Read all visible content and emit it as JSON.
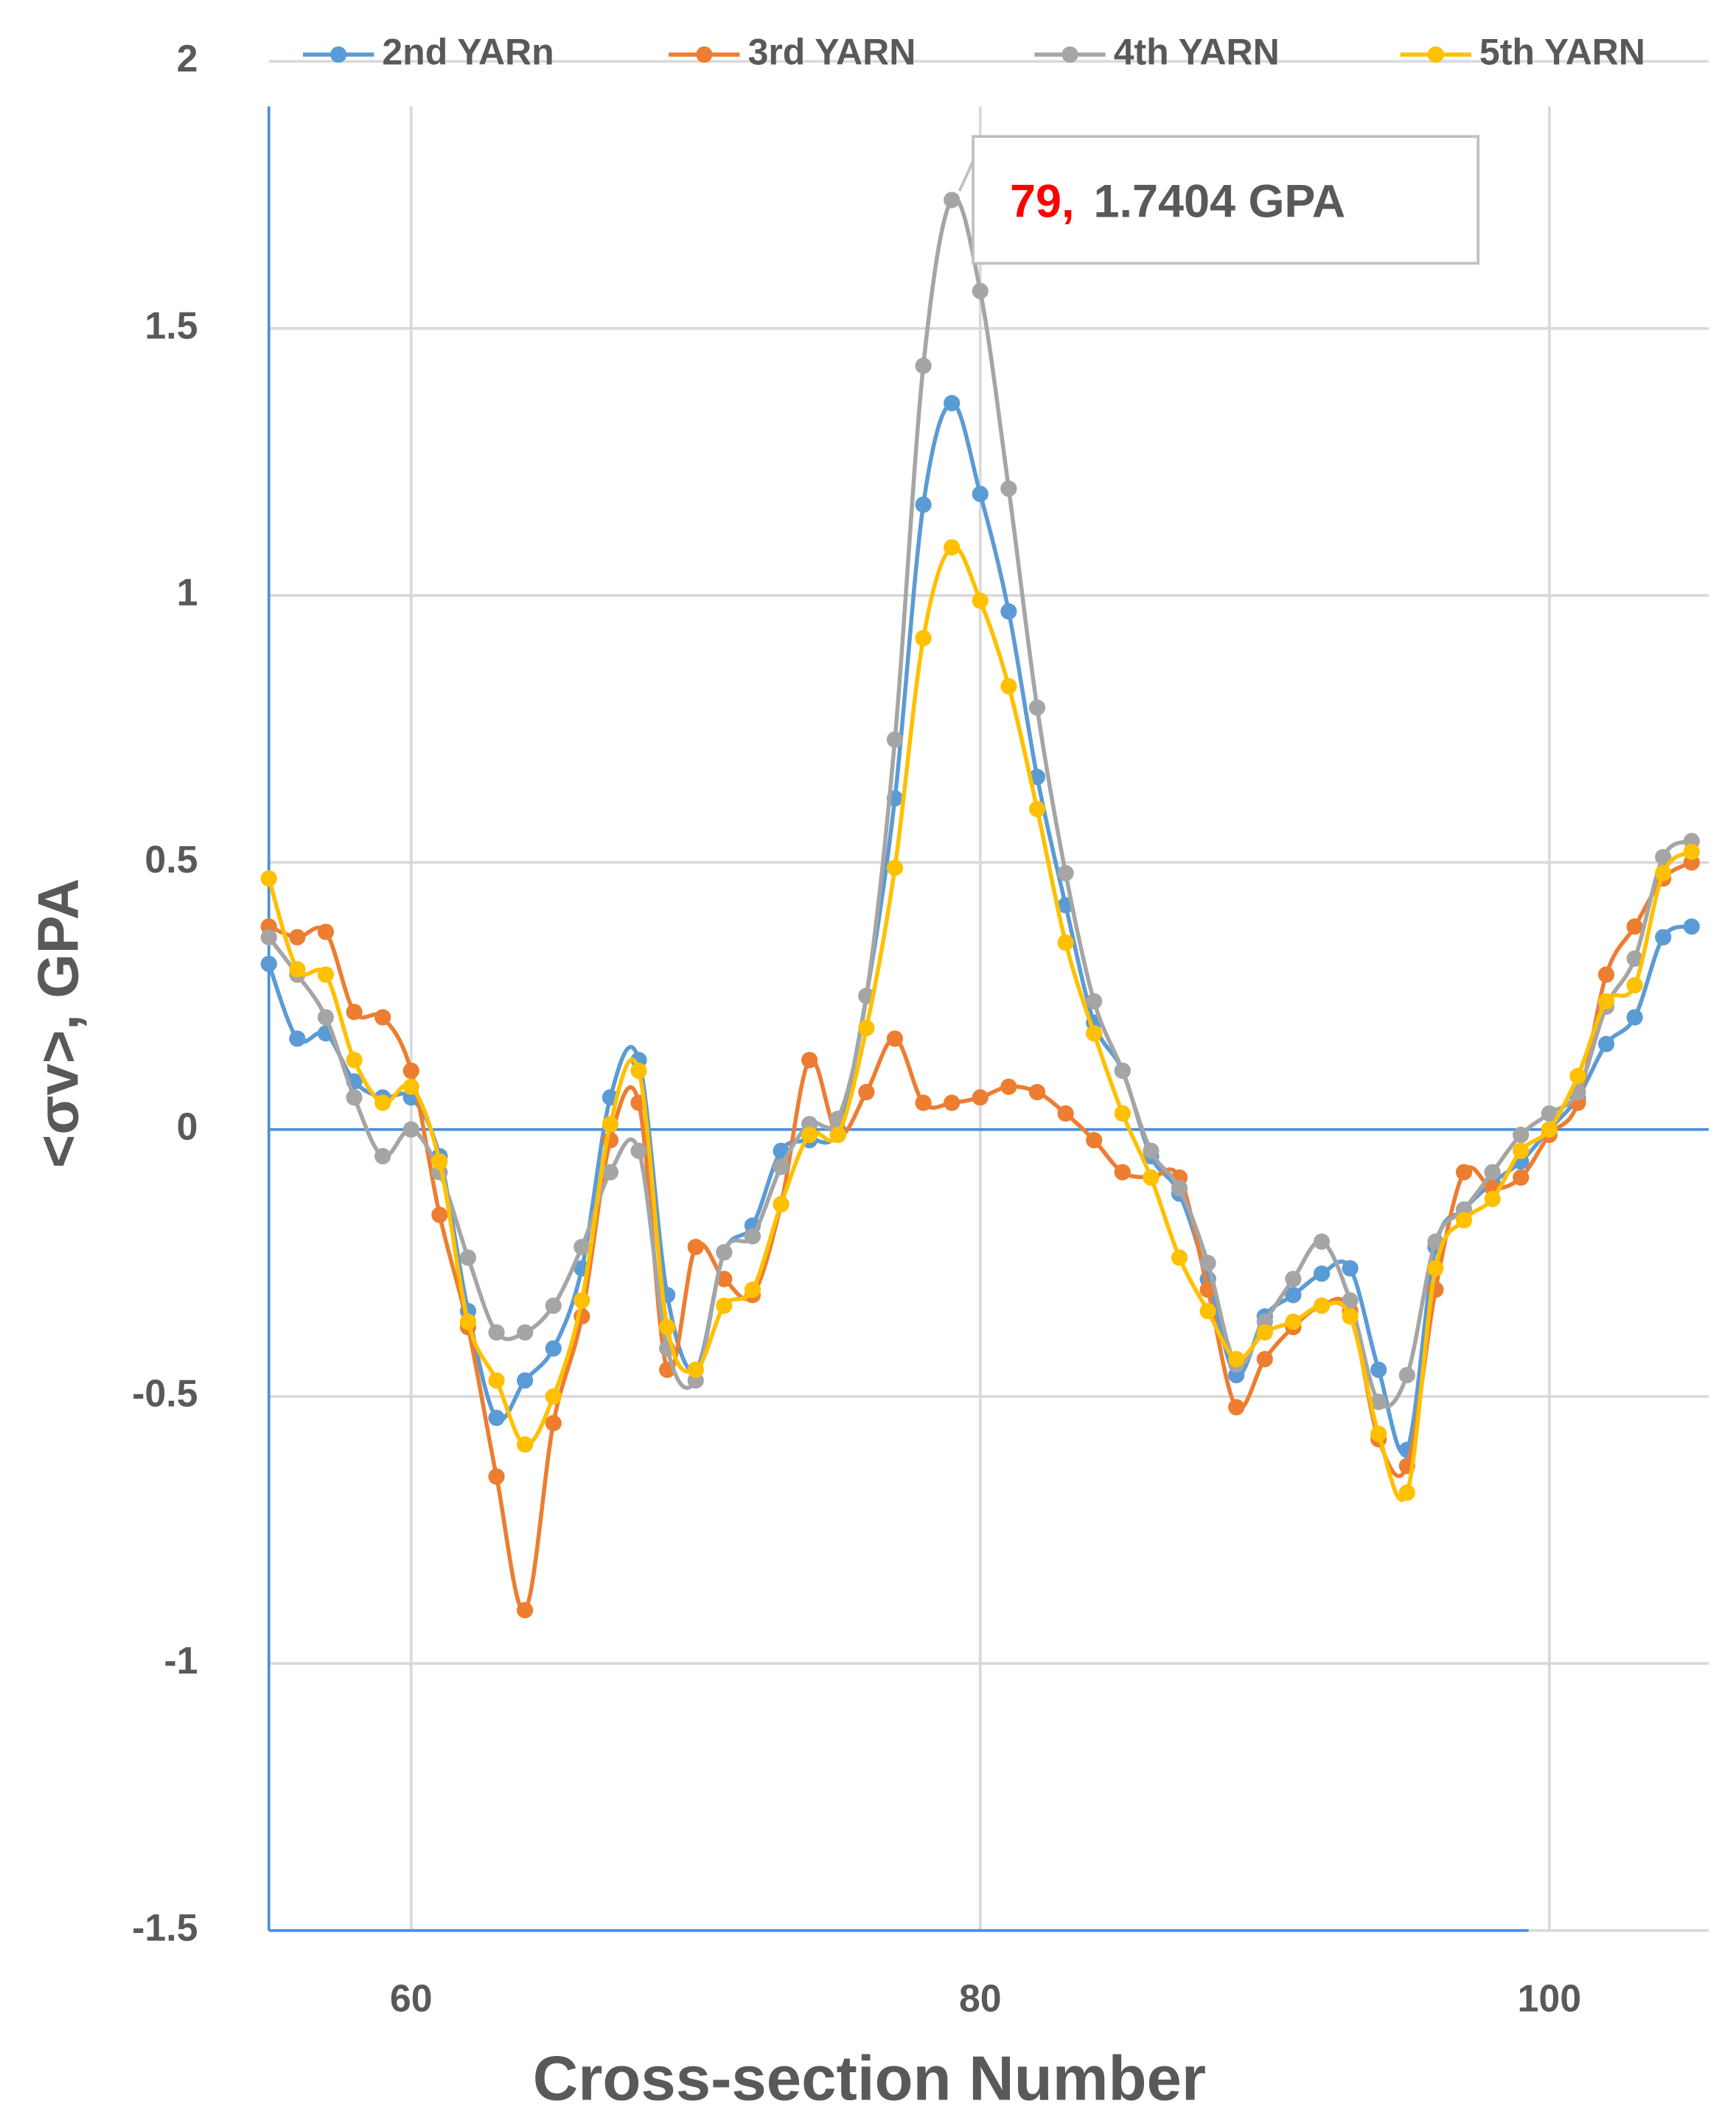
{
  "chart_data": {
    "type": "line",
    "xlabel": "Cross-section Number",
    "ylabel": "<σv>, GPA",
    "x": [
      55,
      56,
      57,
      58,
      59,
      60,
      61,
      62,
      63,
      64,
      65,
      66,
      67,
      68,
      69,
      70,
      71,
      72,
      73,
      74,
      75,
      76,
      77,
      78,
      79,
      80,
      81,
      82,
      83,
      84,
      85,
      86,
      87,
      88,
      89,
      90,
      91,
      92,
      93,
      94,
      95,
      96,
      97,
      98,
      99,
      100,
      101,
      102,
      103,
      104,
      105
    ],
    "series": [
      {
        "name": "2nd YARn",
        "color": "#5b9bd5",
        "values": [
          0.31,
          0.17,
          0.18,
          0.09,
          0.06,
          0.06,
          -0.05,
          -0.34,
          -0.54,
          -0.47,
          -0.41,
          -0.26,
          0.06,
          0.13,
          -0.31,
          -0.45,
          -0.23,
          -0.18,
          -0.04,
          -0.02,
          0.0,
          0.25,
          0.62,
          1.17,
          1.36,
          1.19,
          0.97,
          0.66,
          0.42,
          0.2,
          0.11,
          -0.05,
          -0.12,
          -0.28,
          -0.46,
          -0.35,
          -0.31,
          -0.27,
          -0.26,
          -0.45,
          -0.6,
          -0.22,
          -0.15,
          -0.1,
          -0.06,
          0.0,
          0.06,
          0.16,
          0.21,
          0.36,
          0.38
        ]
      },
      {
        "name": "3rd YARN",
        "color": "#ed7d31",
        "values": [
          0.38,
          0.36,
          0.37,
          0.22,
          0.21,
          0.11,
          -0.16,
          -0.37,
          -0.65,
          -0.9,
          -0.55,
          -0.35,
          -0.02,
          0.05,
          -0.45,
          -0.22,
          -0.28,
          -0.31,
          -0.14,
          0.13,
          -0.01,
          0.07,
          0.17,
          0.05,
          0.05,
          0.06,
          0.08,
          0.07,
          0.03,
          -0.02,
          -0.08,
          -0.09,
          -0.09,
          -0.3,
          -0.52,
          -0.43,
          -0.37,
          -0.33,
          -0.34,
          -0.58,
          -0.63,
          -0.3,
          -0.08,
          -0.11,
          -0.09,
          -0.01,
          0.05,
          0.29,
          0.38,
          0.47,
          0.5
        ]
      },
      {
        "name": "4th YARN",
        "color": "#a5a5a5",
        "values": [
          0.36,
          0.29,
          0.21,
          0.06,
          -0.05,
          0.0,
          -0.08,
          -0.24,
          -0.38,
          -0.38,
          -0.33,
          -0.22,
          -0.08,
          -0.04,
          -0.41,
          -0.47,
          -0.23,
          -0.2,
          -0.07,
          0.01,
          0.02,
          0.25,
          0.73,
          1.43,
          1.7404,
          1.57,
          1.2,
          0.79,
          0.48,
          0.24,
          0.11,
          -0.04,
          -0.11,
          -0.25,
          -0.44,
          -0.36,
          -0.28,
          -0.21,
          -0.32,
          -0.51,
          -0.46,
          -0.21,
          -0.15,
          -0.08,
          -0.01,
          0.03,
          0.07,
          0.23,
          0.32,
          0.51,
          0.54
        ]
      },
      {
        "name": "5th YARN",
        "color": "#ffc000",
        "values": [
          0.47,
          0.3,
          0.29,
          0.13,
          0.05,
          0.08,
          -0.06,
          -0.36,
          -0.47,
          -0.59,
          -0.5,
          -0.32,
          0.01,
          0.11,
          -0.37,
          -0.45,
          -0.33,
          -0.3,
          -0.14,
          -0.01,
          -0.01,
          0.19,
          0.49,
          0.92,
          1.09,
          0.99,
          0.83,
          0.6,
          0.35,
          0.18,
          0.03,
          -0.09,
          -0.24,
          -0.34,
          -0.43,
          -0.38,
          -0.36,
          -0.33,
          -0.35,
          -0.57,
          -0.68,
          -0.26,
          -0.17,
          -0.13,
          -0.04,
          0.0,
          0.1,
          0.24,
          0.27,
          0.48,
          0.52
        ]
      }
    ],
    "xlim": [
      55,
      105.6
    ],
    "xticks": [
      60,
      80,
      100
    ],
    "ylim": [
      -1.5,
      2
    ],
    "yticks": [
      -1.5,
      -1,
      -0.5,
      0,
      0.5,
      1,
      1.5,
      2
    ],
    "grid": true,
    "legend": "top",
    "annotation": {
      "x_text": "79,",
      "value_text": "1.7404 GPA"
    }
  }
}
